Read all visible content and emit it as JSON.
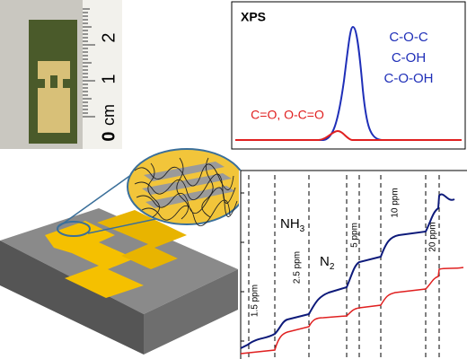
{
  "photo": {
    "ruler_labels": [
      "2",
      "1",
      "0"
    ],
    "unit": "cm"
  },
  "xps": {
    "title": "XPS",
    "blue_labels": [
      "C-O-C",
      "C-OH",
      "C-O-OH"
    ],
    "red_label": "C=O, O-C=O"
  },
  "response": {
    "gases": [
      {
        "base": "NH",
        "sub": "3"
      },
      {
        "base": "N",
        "sub": "2"
      }
    ],
    "concentrations": [
      "1.5 ppm",
      "2.5 ppm",
      "5 ppm",
      "10 ppm",
      "20 ppm"
    ]
  }
}
